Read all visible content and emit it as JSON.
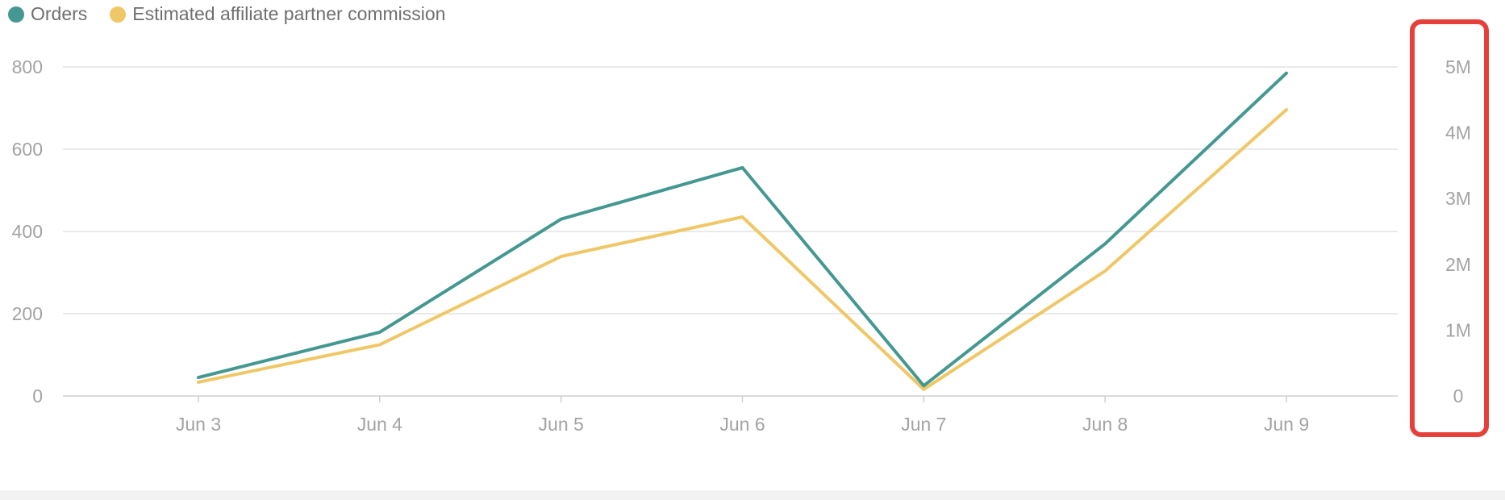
{
  "legend": {
    "items": [
      {
        "label": "Orders",
        "color": "#449891"
      },
      {
        "label": "Estimated affiliate partner commission",
        "color": "#efc766"
      }
    ]
  },
  "chart_data": {
    "type": "line",
    "categories": [
      "Jun 3",
      "Jun 4",
      "Jun 5",
      "Jun 6",
      "Jun 7",
      "Jun 8",
      "Jun 9"
    ],
    "series": [
      {
        "name": "Orders",
        "axis": "left",
        "color": "#449891",
        "values": [
          45,
          155,
          430,
          555,
          25,
          370,
          785
        ]
      },
      {
        "name": "Estimated affiliate partner commission",
        "axis": "right",
        "color": "#efc766",
        "values": [
          210000,
          780000,
          2120000,
          2720000,
          100000,
          1900000,
          4350000
        ]
      }
    ],
    "y_left": {
      "min": 0,
      "max": 800,
      "ticks": [
        0,
        200,
        400,
        600,
        800
      ],
      "tick_labels": [
        "0",
        "200",
        "400",
        "600",
        "800"
      ]
    },
    "y_right": {
      "min": 0,
      "max": 5000000,
      "ticks": [
        0,
        1000000,
        2000000,
        3000000,
        4000000,
        5000000
      ],
      "tick_labels": [
        "0",
        "1M",
        "2M",
        "3M",
        "4M",
        "5M"
      ]
    },
    "grid": true,
    "legend_position": "top-left",
    "right_axis_highlighted": true,
    "highlight_color": "#e5413a"
  }
}
